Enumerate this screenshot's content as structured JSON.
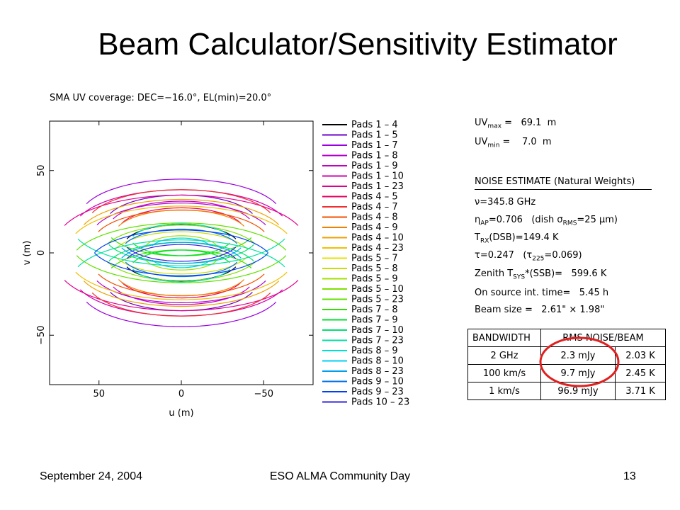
{
  "slide": {
    "title": "Beam Calculator/Sensitivity Estimator",
    "footer_date": "September 24, 2004",
    "footer_event": "ESO ALMA Community Day",
    "page_number": "13"
  },
  "info": {
    "uvmax_label": "UV",
    "uvmax_sub": "max",
    "uvmax_value": "=   69.1  m",
    "uvmin_label": "UV",
    "uvmin_sub": "min",
    "uvmin_value": "=    7.0  m",
    "noise_heading": "NOISE ESTIMATE (Natural Weights)",
    "nu_line": "ν=345.8 GHz",
    "eta_label": "η",
    "eta_sub": "AP",
    "eta_value": "=0.706   (dish σ",
    "eta_sigma_sub": "RMS",
    "eta_tail": "=25 μm)",
    "trx_label": "T",
    "trx_sub": "RX",
    "trx_value": "(DSB)=149.4  K",
    "tau_line_a": "τ=0.247   (τ",
    "tau_sub": "225",
    "tau_line_b": "=0.069)",
    "zenith_label": "Zenith T",
    "zenith_sub": "SYS",
    "zenith_value": "*(SSB)=   599.6 K",
    "onsource_line": "On source int. time=   5.45 h",
    "beam_line": "Beam size =   2.61\" × 1.98\""
  },
  "noise_table": {
    "headers": [
      "BANDWIDTH",
      "RMS NOISE/BEAM"
    ],
    "rows": [
      [
        "2 GHz",
        "2.3 mJy",
        "2.03 K"
      ],
      [
        "100 km/s",
        "9.7 mJy",
        "2.45 K"
      ],
      [
        "1 km/s",
        "96.9 mJy",
        "3.71 K"
      ]
    ]
  },
  "chart_data": {
    "type": "scatter",
    "title": "SMA UV coverage: DEC=−16.0°, EL(min)=20.0°",
    "xlabel": "u (m)",
    "ylabel": "v (m)",
    "xlim": [
      80,
      -80
    ],
    "ylim": [
      -80,
      80
    ],
    "x_ticks": [
      50,
      0,
      -50
    ],
    "x_tick_labels": [
      "50",
      "0",
      "−50"
    ],
    "y_ticks": [
      50,
      0,
      -50
    ],
    "y_tick_labels": [
      "50",
      "0",
      "−50"
    ],
    "legend_placement": "right",
    "series": [
      {
        "name": "Pads  1 –  4",
        "color": "#000000",
        "u": 26,
        "v": 8
      },
      {
        "name": "Pads  1 –  5",
        "color": "#6a00c8",
        "u": 12,
        "v": 36
      },
      {
        "name": "Pads  1 –  7",
        "color": "#9a00e0",
        "u": 30,
        "v": 44
      },
      {
        "name": "Pads  1 –  8",
        "color": "#b000d0",
        "u": 42,
        "v": 20
      },
      {
        "name": "Pads  1 –  9",
        "color": "#c000c0",
        "u": 20,
        "v": 30
      },
      {
        "name": "Pads  1 – 10",
        "color": "#d000b0",
        "u": 50,
        "v": 28
      },
      {
        "name": "Pads  1 – 23",
        "color": "#e00090",
        "u": 66,
        "v": 14
      },
      {
        "name": "Pads  4 –  5",
        "color": "#e80060",
        "u": 16,
        "v": 26
      },
      {
        "name": "Pads  4 –  7",
        "color": "#f03030",
        "u": 36,
        "v": 34
      },
      {
        "name": "Pads  4 –  8",
        "color": "#f05000",
        "u": 44,
        "v": 12
      },
      {
        "name": "Pads  4 –  9",
        "color": "#f08000",
        "u": 24,
        "v": 22
      },
      {
        "name": "Pads  4 – 10",
        "color": "#f0a000",
        "u": 52,
        "v": 18
      },
      {
        "name": "Pads  4 – 23",
        "color": "#f0c000",
        "u": 60,
        "v": 6
      },
      {
        "name": "Pads  5 –  7",
        "color": "#e8e000",
        "u": 20,
        "v": 12
      },
      {
        "name": "Pads  5 –  8",
        "color": "#c8e000",
        "u": 34,
        "v": -6
      },
      {
        "name": "Pads  5 –  9",
        "color": "#a0e000",
        "u": 14,
        "v": 4
      },
      {
        "name": "Pads  5 – 10",
        "color": "#80e000",
        "u": 40,
        "v": -2
      },
      {
        "name": "Pads  5 – 23",
        "color": "#60e000",
        "u": 58,
        "v": -14
      },
      {
        "name": "Pads  7 –  8",
        "color": "#30e000",
        "u": 22,
        "v": -30
      },
      {
        "name": "Pads  7 –  9",
        "color": "#00e030",
        "u": 12,
        "v": -20
      },
      {
        "name": "Pads  7 – 10",
        "color": "#00e070",
        "u": 32,
        "v": -22
      },
      {
        "name": "Pads  7 – 23",
        "color": "#00e0a0",
        "u": 48,
        "v": -34
      },
      {
        "name": "Pads  8 –  9",
        "color": "#00e0d0",
        "u": 20,
        "v": 12
      },
      {
        "name": "Pads  8 – 10",
        "color": "#00d0f0",
        "u": 10,
        "v": 4
      },
      {
        "name": "Pads  8 – 23",
        "color": "#00a0f0",
        "u": 26,
        "v": -16
      },
      {
        "name": "Pads  9 – 10",
        "color": "#0070f0",
        "u": 28,
        "v": 2
      },
      {
        "name": "Pads  9 – 23",
        "color": "#0040f0",
        "u": 46,
        "v": -14
      },
      {
        "name": "Pads 10 – 23",
        "color": "#3020e0",
        "u": 22,
        "v": -16
      }
    ]
  },
  "colors": {
    "highlight": "#e02020",
    "axis": "#000000"
  }
}
